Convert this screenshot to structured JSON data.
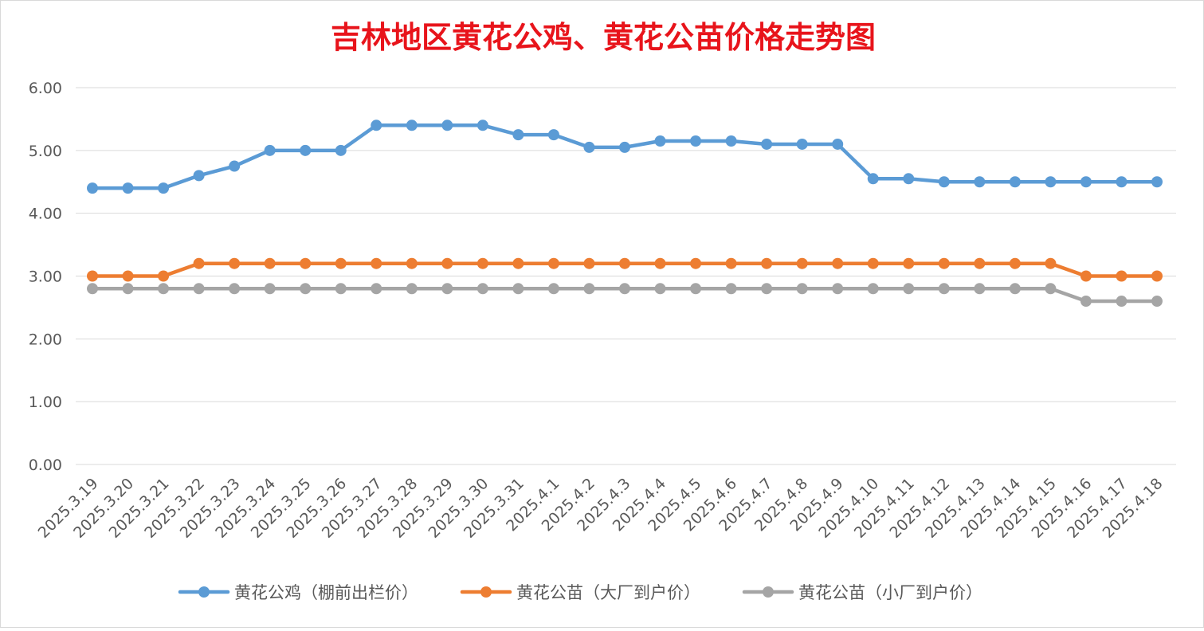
{
  "chart_data": {
    "type": "line",
    "title": "吉林地区黄花公鸡、黄花公苗价格走势图",
    "title_color": "#E8141B",
    "xlabel": "",
    "ylabel": "",
    "ylim": [
      0,
      6
    ],
    "yticks": [
      "0.00",
      "1.00",
      "2.00",
      "3.00",
      "4.00",
      "5.00",
      "6.00"
    ],
    "grid": true,
    "legend_position": "bottom",
    "categories": [
      "2025.3.19",
      "2025.3.20",
      "2025.3.21",
      "2025.3.22",
      "2025.3.23",
      "2025.3.24",
      "2025.3.25",
      "2025.3.26",
      "2025.3.27",
      "2025.3.28",
      "2025.3.29",
      "2025.3.30",
      "2025.3.31",
      "2025.4.1",
      "2025.4.2",
      "2025.4.3",
      "2025.4.4",
      "2025.4.5",
      "2025.4.6",
      "2025.4.7",
      "2025.4.8",
      "2025.4.9",
      "2025.4.10",
      "2025.4.11",
      "2025.4.12",
      "2025.4.13",
      "2025.4.14",
      "2025.4.15",
      "2025.4.16",
      "2025.4.17",
      "2025.4.18"
    ],
    "series": [
      {
        "name": "黄花公鸡（棚前出栏价）",
        "color": "#5B9BD5",
        "values": [
          4.4,
          4.4,
          4.4,
          4.6,
          4.75,
          5.0,
          5.0,
          5.0,
          5.4,
          5.4,
          5.4,
          5.4,
          5.25,
          5.25,
          5.05,
          5.05,
          5.15,
          5.15,
          5.15,
          5.1,
          5.1,
          5.1,
          4.55,
          4.55,
          4.5,
          4.5,
          4.5,
          4.5,
          4.5,
          4.5,
          4.5
        ]
      },
      {
        "name": "黄花公苗（大厂到户价）",
        "color": "#ED7D31",
        "values": [
          3.0,
          3.0,
          3.0,
          3.2,
          3.2,
          3.2,
          3.2,
          3.2,
          3.2,
          3.2,
          3.2,
          3.2,
          3.2,
          3.2,
          3.2,
          3.2,
          3.2,
          3.2,
          3.2,
          3.2,
          3.2,
          3.2,
          3.2,
          3.2,
          3.2,
          3.2,
          3.2,
          3.2,
          3.0,
          3.0,
          3.0
        ]
      },
      {
        "name": "黄花公苗（小厂到户价）",
        "color": "#A5A5A5",
        "values": [
          2.8,
          2.8,
          2.8,
          2.8,
          2.8,
          2.8,
          2.8,
          2.8,
          2.8,
          2.8,
          2.8,
          2.8,
          2.8,
          2.8,
          2.8,
          2.8,
          2.8,
          2.8,
          2.8,
          2.8,
          2.8,
          2.8,
          2.8,
          2.8,
          2.8,
          2.8,
          2.8,
          2.8,
          2.6,
          2.6,
          2.6
        ]
      }
    ]
  }
}
